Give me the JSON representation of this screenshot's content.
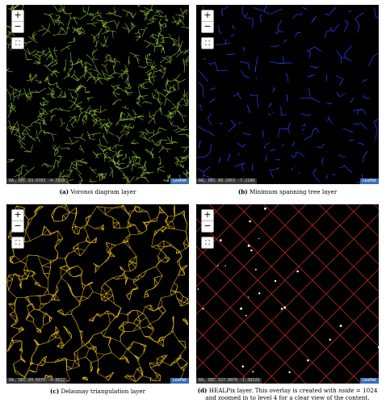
{
  "map_controls": {
    "zoom_in": "+",
    "zoom_out": "−",
    "fullscreen": "⛶"
  },
  "attribution": "Leaflet",
  "panels": [
    {
      "key": "a",
      "label": "(a)",
      "caption": "Voronoi diagram layer",
      "coords": "RA, DEC  83.0783 -4.7510",
      "color": "#8fc43a"
    },
    {
      "key": "b",
      "label": "(b)",
      "caption": "Minimum spanning tree layer",
      "coords": "RA, DEC  88.2963 -7.2180",
      "color": "#2f3cff"
    },
    {
      "key": "c",
      "label": "(c)",
      "caption": "Delaunay triangulation layer",
      "coords": "RA, DEC  89.6079 -4.9022",
      "color": "#e5b81a"
    },
    {
      "key": "d",
      "label": "(d)",
      "caption_part1": "HEALPix layer. This overlay is created with ",
      "caption_var": "nside",
      "caption_part2": " = 1024",
      "caption_line2": "and zoomed in to level 4 for a clear view of the content.",
      "coords": "RA, DEC  227.8070 -1.38326",
      "color": "#d82a2a"
    }
  ]
}
